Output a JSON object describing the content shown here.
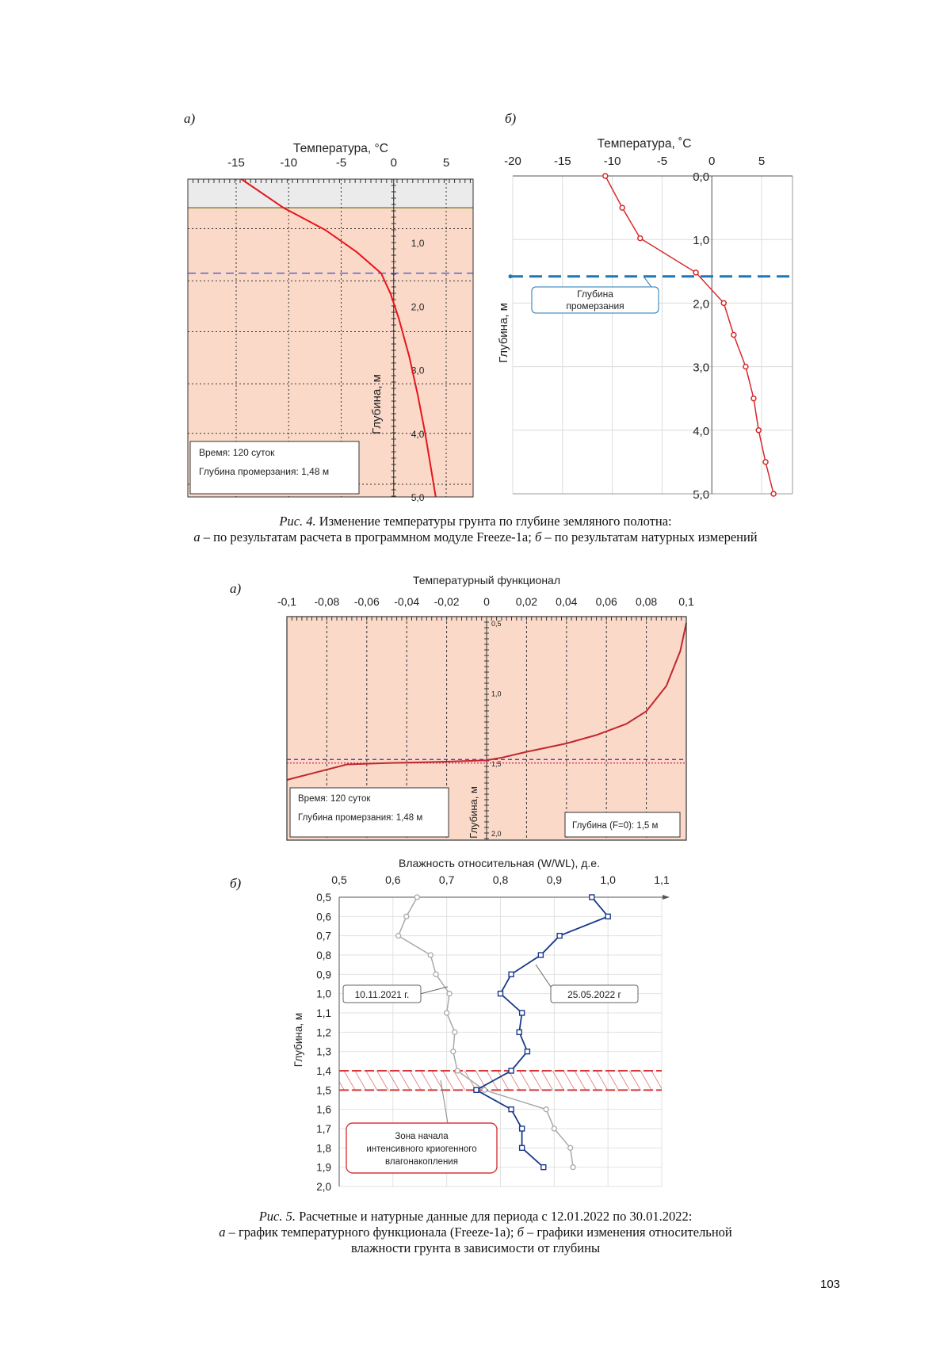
{
  "figure4": {
    "label_a": "а)",
    "label_b": "б)",
    "caption_prefix": "Рис. 4.",
    "caption_text": " Изменение температуры грунта по глубине земляного полотна:",
    "caption_line2_a": "а",
    "caption_line2_mid": " – по результатам расчета в программном модуле Freeze-1a; ",
    "caption_line2_b": "б",
    "caption_line2_end": " – по результатам натурных измерений"
  },
  "figure5": {
    "label_a": "а)",
    "label_b": "б)",
    "caption_prefix": "Рис. 5.",
    "caption_text": " Расчетные и натурные данные для периода с 12.01.2022 по 30.01.2022:",
    "caption_line2_a": "а",
    "caption_line2_mid": " – график температурного функционала (Freeze-1a); ",
    "caption_line2_b": "б",
    "caption_line2_end": " – графики изменения относительной",
    "caption_line3": "влажности грунта в зависимости от глубины"
  },
  "page_number": "103",
  "colors": {
    "model_fill": "#fbd9c8",
    "model_top_fill": "#ebebeb",
    "model_line": "#e8141c",
    "meas_line": "#d8282b",
    "freeze_dash": "#1f77b4",
    "func_line": "#c0282f",
    "moist_early": "#a9a9a9",
    "moist_late": "#1b3a8c",
    "hatch": "#d9383a"
  },
  "chart_data": [
    {
      "id": "fig4a",
      "type": "line",
      "title": "Температура, °С",
      "xlabel": "Температура, °С",
      "ylabel": "Глубина, м",
      "xlim": [
        -20,
        8
      ],
      "ylim": [
        0,
        5.0
      ],
      "x_ticks": [
        "-15",
        "-10",
        "-5",
        "0",
        "5"
      ],
      "x_tick_values": [
        -15,
        -10,
        -5,
        0,
        5
      ],
      "y_ticks": [
        "1,0",
        "2,0",
        "3,0",
        "4,0",
        "5,0"
      ],
      "y_tick_values": [
        1.0,
        2.0,
        3.0,
        4.0,
        5.0
      ],
      "grid": true,
      "surface_depth": 0.45,
      "freezing_depth": 1.48,
      "series": [
        {
          "x": [
            -14.5,
            -10.5,
            -6.5,
            -3.5,
            -1.2,
            -0.3,
            0.5,
            1.5,
            2.3,
            3.0,
            3.6,
            4.0
          ],
          "y": [
            0.0,
            0.45,
            0.8,
            1.15,
            1.48,
            1.8,
            2.2,
            2.8,
            3.4,
            4.0,
            4.6,
            5.0
          ]
        }
      ],
      "annotations": {
        "time": "Время: 120 суток",
        "freeze_depth": "Глубина промерзания: 1,48 м"
      }
    },
    {
      "id": "fig4b",
      "type": "line",
      "title": "Температура, ˚С",
      "xlabel": "Температура, ˚С",
      "ylabel": "Глубина, м",
      "xlim": [
        -20,
        8
      ],
      "ylim": [
        0,
        5.0
      ],
      "x_ticks": [
        "-20",
        "-15",
        "-10",
        "-5",
        "0",
        "5"
      ],
      "x_tick_values": [
        -20,
        -15,
        -10,
        -5,
        0,
        5
      ],
      "y_ticks": [
        "0,0",
        "1,0",
        "2,0",
        "3,0",
        "4,0",
        "5,0"
      ],
      "y_tick_values": [
        0,
        1.0,
        2.0,
        3.0,
        4.0,
        5.0
      ],
      "grid": true,
      "freezing_depth": 1.58,
      "series": [
        {
          "x": [
            -10.7,
            -9.0,
            -7.2,
            -1.6,
            1.2,
            2.2,
            3.4,
            4.2,
            4.7,
            5.4,
            6.2
          ],
          "y": [
            0.0,
            0.5,
            0.98,
            1.52,
            2.0,
            2.5,
            3.0,
            3.5,
            4.0,
            4.5,
            5.0
          ]
        }
      ],
      "annotations": {
        "freeze_zone": "Глубина промерзания"
      }
    },
    {
      "id": "fig5a",
      "type": "line",
      "title": "Температурный функционал",
      "xlabel": "Температурный функционал",
      "ylabel": "Глубина, м",
      "xlim": [
        -0.1,
        0.1
      ],
      "ylim": [
        0.5,
        2.1
      ],
      "x_ticks": [
        "-0,1",
        "-0,08",
        "-0,06",
        "-0,04",
        "-0,02",
        "0",
        "0,02",
        "0,04",
        "0,06",
        "0,08",
        "0,1"
      ],
      "x_tick_values": [
        -0.1,
        -0.08,
        -0.06,
        -0.04,
        -0.02,
        0,
        0.02,
        0.04,
        0.06,
        0.08,
        0.1
      ],
      "y_ticks": [
        "0,5",
        "1,0",
        "1,5",
        "2,0"
      ],
      "y_tick_values": [
        0.5,
        1.0,
        1.5,
        2.0
      ],
      "grid": true,
      "freezing_depth": 1.48,
      "zero_depth": 1.5,
      "series": [
        {
          "x": [
            0.1,
            0.097,
            0.09,
            0.08,
            0.07,
            0.055,
            0.04,
            0.02,
            0.008,
            0,
            -0.02,
            -0.05,
            -0.07,
            -0.1
          ],
          "y": [
            0.5,
            0.7,
            0.95,
            1.13,
            1.22,
            1.3,
            1.36,
            1.42,
            1.46,
            1.48,
            1.49,
            1.5,
            1.51,
            1.62
          ]
        }
      ],
      "annotations": {
        "time": "Время: 120 суток",
        "freeze_depth": "Глубина промерзания: 1,48 м",
        "zero_depth": "Глубина (F=0): 1,5 м"
      }
    },
    {
      "id": "fig5b",
      "type": "line",
      "title": "Влажность относительная (W/WL), д.е.",
      "xlabel": "Влажность относительная (W/WL), д.е.",
      "ylabel": "Глубина, м",
      "xlim": [
        0.5,
        1.1
      ],
      "ylim": [
        0.5,
        2.0
      ],
      "x_ticks": [
        "0,5",
        "0,6",
        "0,7",
        "0,8",
        "0,9",
        "1,0",
        "1,1"
      ],
      "x_tick_values": [
        0.5,
        0.6,
        0.7,
        0.8,
        0.9,
        1.0,
        1.1
      ],
      "y_ticks": [
        "0,5",
        "0,6",
        "0,7",
        "0,8",
        "0,9",
        "1,0",
        "1,1",
        "1,2",
        "1,3",
        "1,4",
        "1,5",
        "1,6",
        "1,7",
        "1,8",
        "1,9",
        "2,0"
      ],
      "y_tick_values": [
        0.5,
        0.6,
        0.7,
        0.8,
        0.9,
        1.0,
        1.1,
        1.2,
        1.3,
        1.4,
        1.5,
        1.6,
        1.7,
        1.8,
        1.9,
        2.0
      ],
      "grid": true,
      "zone_depth": [
        1.4,
        1.5
      ],
      "series": [
        {
          "name": "10.11.2021 г.",
          "x": [
            0.645,
            0.625,
            0.61,
            0.67,
            0.68,
            0.705,
            0.7,
            0.715,
            0.712,
            0.72,
            0.77,
            0.885,
            0.9,
            0.93,
            0.935
          ],
          "y": [
            0.5,
            0.6,
            0.7,
            0.8,
            0.9,
            1.0,
            1.1,
            1.2,
            1.3,
            1.4,
            1.5,
            1.6,
            1.7,
            1.8,
            1.9
          ]
        },
        {
          "name": "25.05.2022 г",
          "x": [
            0.97,
            1.0,
            0.91,
            0.875,
            0.82,
            0.8,
            0.84,
            0.835,
            0.85,
            0.82,
            0.755,
            0.82,
            0.84,
            0.84,
            0.88
          ],
          "y": [
            0.5,
            0.6,
            0.7,
            0.8,
            0.9,
            1.0,
            1.1,
            1.2,
            1.3,
            1.4,
            1.5,
            1.6,
            1.7,
            1.8,
            1.9
          ]
        }
      ],
      "annotations": {
        "zone": [
          "Зона начала",
          "интенсивного криогенного",
          "влагонакопления"
        ]
      }
    }
  ]
}
